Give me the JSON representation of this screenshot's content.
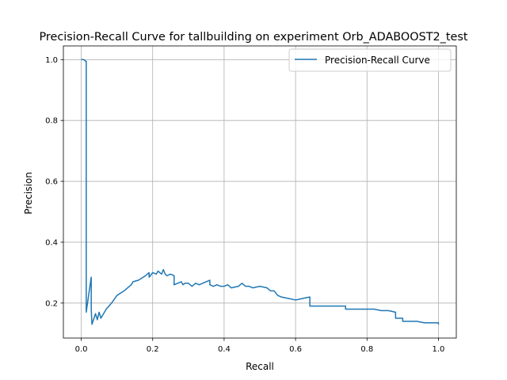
{
  "chart_data": {
    "type": "line",
    "title": "Precision-Recall Curve for tallbuilding on experiment Orb_ADABOOST2_test",
    "xlabel": "Recall",
    "ylabel": "Precision",
    "xlim": [
      -0.05,
      1.05
    ],
    "ylim": [
      0.085,
      1.045
    ],
    "x_ticks": [
      0.0,
      0.2,
      0.4,
      0.6,
      0.8,
      1.0
    ],
    "x_tick_labels": [
      "0.0",
      "0.2",
      "0.4",
      "0.6",
      "0.8",
      "1.0"
    ],
    "y_ticks": [
      0.2,
      0.4,
      0.6,
      0.8,
      1.0
    ],
    "y_tick_labels": [
      "0.2",
      "0.4",
      "0.6",
      "0.8",
      "1.0"
    ],
    "grid": true,
    "legend_position": "top-right",
    "colors": {
      "series": "#1f77b4"
    },
    "series": [
      {
        "name": "Precision-Recall Curve",
        "x": [
          0.0,
          0.004,
          0.007,
          0.012,
          0.014,
          0.014,
          0.02,
          0.028,
          0.028,
          0.03,
          0.04,
          0.045,
          0.05,
          0.055,
          0.06,
          0.07,
          0.085,
          0.1,
          0.12,
          0.14,
          0.145,
          0.16,
          0.18,
          0.19,
          0.19,
          0.2,
          0.21,
          0.215,
          0.225,
          0.23,
          0.235,
          0.24,
          0.25,
          0.26,
          0.26,
          0.27,
          0.28,
          0.285,
          0.29,
          0.3,
          0.31,
          0.32,
          0.33,
          0.34,
          0.36,
          0.36,
          0.37,
          0.38,
          0.39,
          0.4,
          0.41,
          0.42,
          0.44,
          0.45,
          0.46,
          0.47,
          0.48,
          0.5,
          0.52,
          0.53,
          0.54,
          0.55,
          0.56,
          0.58,
          0.6,
          0.62,
          0.64,
          0.64,
          0.66,
          0.68,
          0.7,
          0.72,
          0.74,
          0.74,
          0.76,
          0.78,
          0.8,
          0.82,
          0.84,
          0.86,
          0.88,
          0.88,
          0.9,
          0.9,
          0.92,
          0.94,
          0.96,
          0.98,
          1.0,
          1.0
        ],
        "y": [
          1.0,
          1.0,
          1.0,
          0.995,
          0.995,
          0.17,
          0.22,
          0.285,
          0.18,
          0.13,
          0.165,
          0.145,
          0.17,
          0.15,
          0.16,
          0.18,
          0.2,
          0.225,
          0.24,
          0.26,
          0.27,
          0.275,
          0.29,
          0.3,
          0.285,
          0.3,
          0.295,
          0.305,
          0.295,
          0.31,
          0.295,
          0.29,
          0.295,
          0.29,
          0.26,
          0.265,
          0.27,
          0.26,
          0.265,
          0.265,
          0.255,
          0.265,
          0.26,
          0.265,
          0.275,
          0.26,
          0.255,
          0.26,
          0.255,
          0.255,
          0.26,
          0.25,
          0.255,
          0.265,
          0.255,
          0.255,
          0.25,
          0.255,
          0.25,
          0.24,
          0.24,
          0.225,
          0.22,
          0.215,
          0.21,
          0.215,
          0.22,
          0.19,
          0.19,
          0.19,
          0.19,
          0.19,
          0.19,
          0.18,
          0.18,
          0.18,
          0.18,
          0.18,
          0.175,
          0.175,
          0.17,
          0.15,
          0.15,
          0.14,
          0.14,
          0.14,
          0.135,
          0.135,
          0.135,
          0.13
        ]
      }
    ]
  }
}
